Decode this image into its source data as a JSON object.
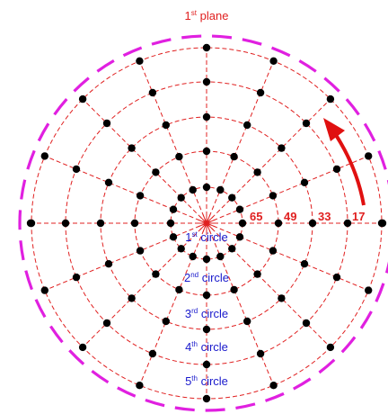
{
  "diagram": {
    "title": {
      "num": "1",
      "sup": "st",
      "rest": " plane"
    },
    "index_labels": [
      "65",
      "49",
      "33",
      "17"
    ],
    "circle_labels": [
      {
        "num": "1",
        "sup": "st",
        "rest": " circle"
      },
      {
        "num": "2",
        "sup": "nd",
        "rest": " circle"
      },
      {
        "num": "3",
        "sup": "rd",
        "rest": " circle"
      },
      {
        "num": "4",
        "sup": "th",
        "rest": " circle"
      },
      {
        "num": "5",
        "sup": "th",
        "rest": " circle"
      }
    ],
    "rings": 5,
    "spokes": 16,
    "colors": {
      "grid": "#e02020",
      "outer_ring": "#e020e0",
      "node": "#000000",
      "index_text": "#e02020",
      "circle_text": "#1a1acc",
      "arrow": "#e01010"
    }
  }
}
